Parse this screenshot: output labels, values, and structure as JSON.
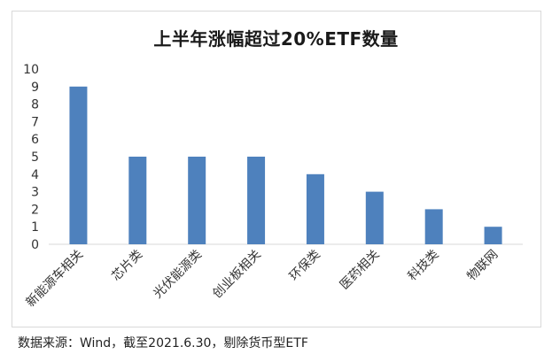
{
  "chart_data": {
    "type": "bar",
    "title": "上半年涨幅超过20%ETF数量",
    "categories": [
      "新能源车相关",
      "芯片类",
      "光伏能源类",
      "创业板相关",
      "环保类",
      "医药相关",
      "科技类",
      "物联网"
    ],
    "values": [
      9,
      5,
      5,
      5,
      4,
      3,
      2,
      1
    ],
    "xlabel": "",
    "ylabel": "",
    "ylim": [
      0,
      10
    ],
    "yticks": [
      "0",
      "1",
      "2",
      "3",
      "4",
      "5",
      "6",
      "7",
      "8",
      "9",
      "10"
    ],
    "grid": false,
    "legend": "none",
    "bar_color": "#4e81bd"
  },
  "source_note": "数据来源：Wind，截至2021.6.30，剔除货币型ETF"
}
